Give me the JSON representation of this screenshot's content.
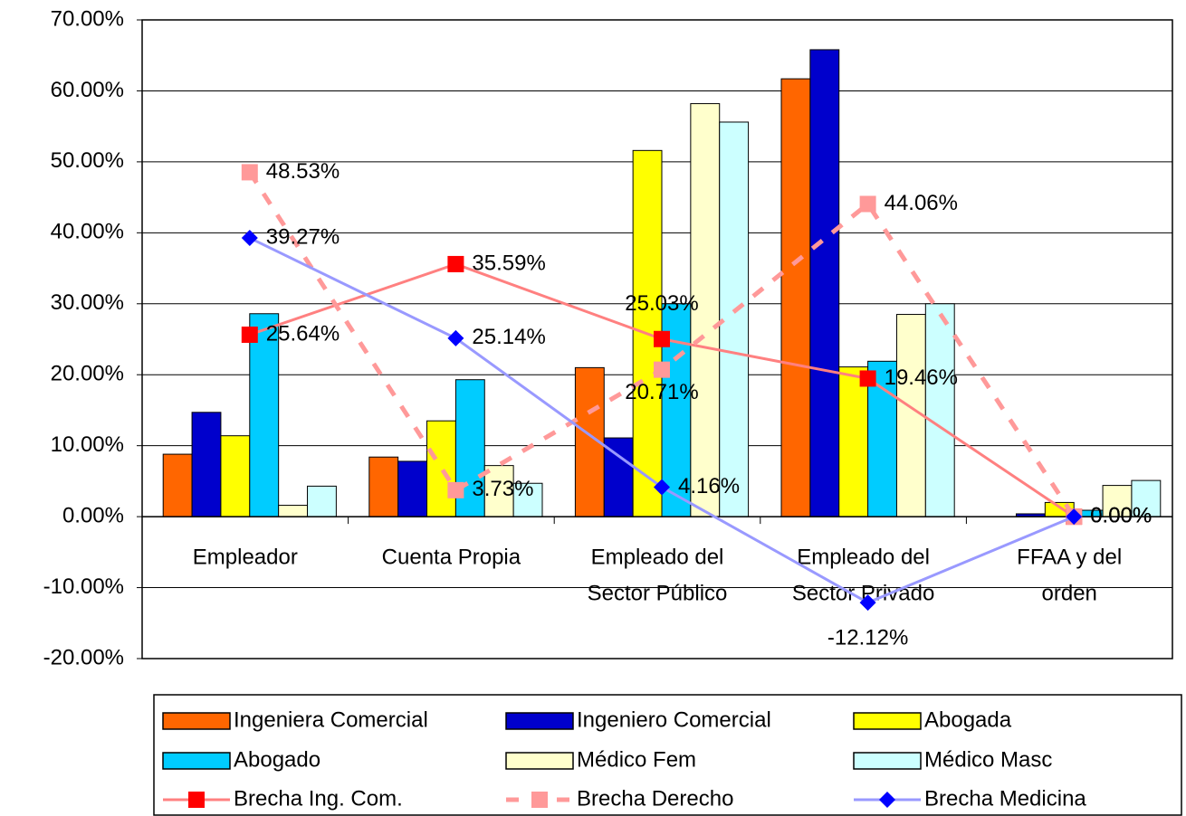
{
  "chart_data": {
    "type": "bar",
    "categories": [
      [
        "Empleador"
      ],
      [
        "Cuenta Propia"
      ],
      [
        "Empleado del",
        "Sector Público"
      ],
      [
        "Empleado del",
        "Sector Privado"
      ],
      [
        "FFAA y del",
        "orden"
      ]
    ],
    "ylim": [
      -20,
      70
    ],
    "yticks": [
      {
        "value": -20,
        "label": "-20.00%"
      },
      {
        "value": -10,
        "label": "-10.00%"
      },
      {
        "value": 0,
        "label": "0.00%"
      },
      {
        "value": 10,
        "label": "10.00%"
      },
      {
        "value": 20,
        "label": "20.00%"
      },
      {
        "value": 30,
        "label": "30.00%"
      },
      {
        "value": 40,
        "label": "40.00%"
      },
      {
        "value": 50,
        "label": "50.00%"
      },
      {
        "value": 60,
        "label": "60.00%"
      },
      {
        "value": 70,
        "label": "70.00%"
      }
    ],
    "grid": true,
    "series": [
      {
        "name": "Ingeniera Comercial",
        "color": "#FF6600",
        "values": [
          8.8,
          8.4,
          21.0,
          61.7,
          0
        ]
      },
      {
        "name": "Ingeniero Comercial",
        "color": "#0000CC",
        "values": [
          14.7,
          7.8,
          11.1,
          65.8,
          0.4
        ]
      },
      {
        "name": "Abogada",
        "color": "#FFFF00",
        "values": [
          11.4,
          13.5,
          51.6,
          21.1,
          2.0
        ]
      },
      {
        "name": "Abogado",
        "color": "#00CCFF",
        "values": [
          28.6,
          19.3,
          30.0,
          21.9,
          0.9
        ]
      },
      {
        "name": "Médico Fem",
        "color": "#FFFFCC",
        "values": [
          1.6,
          7.2,
          58.2,
          28.5,
          4.4
        ]
      },
      {
        "name": "Médico Masc",
        "color": "#CCFFFF",
        "values": [
          4.3,
          4.7,
          55.6,
          30.0,
          5.1
        ]
      },
      {
        "name": "Brecha Ing. Com.",
        "type": "line",
        "color": "#FF8080",
        "marker": "square",
        "marker_color": "#FF0000",
        "dashed": false,
        "values": [
          25.64,
          35.59,
          25.03,
          19.46,
          0.0
        ],
        "value_labels": [
          "25.64%",
          "35.59%",
          "25.03%",
          "19.46%",
          "0.00%"
        ]
      },
      {
        "name": "Brecha Derecho",
        "type": "line",
        "color": "#FF9999",
        "marker": "square",
        "marker_color": "#FF9999",
        "dashed": true,
        "values": [
          48.53,
          3.73,
          20.71,
          44.06,
          0.0
        ],
        "value_labels": [
          "48.53%",
          "3.73%",
          "20.71%",
          "44.06%",
          "0.00%"
        ]
      },
      {
        "name": "Brecha Medicina",
        "type": "line",
        "color": "#9999FF",
        "marker": "diamond",
        "marker_color": "#0000FF",
        "dashed": false,
        "values": [
          39.27,
          25.14,
          4.16,
          -12.12,
          0.0
        ],
        "value_labels": [
          "39.27%",
          "25.14%",
          "4.16%",
          "-12.12%",
          "0.00%"
        ]
      }
    ]
  }
}
